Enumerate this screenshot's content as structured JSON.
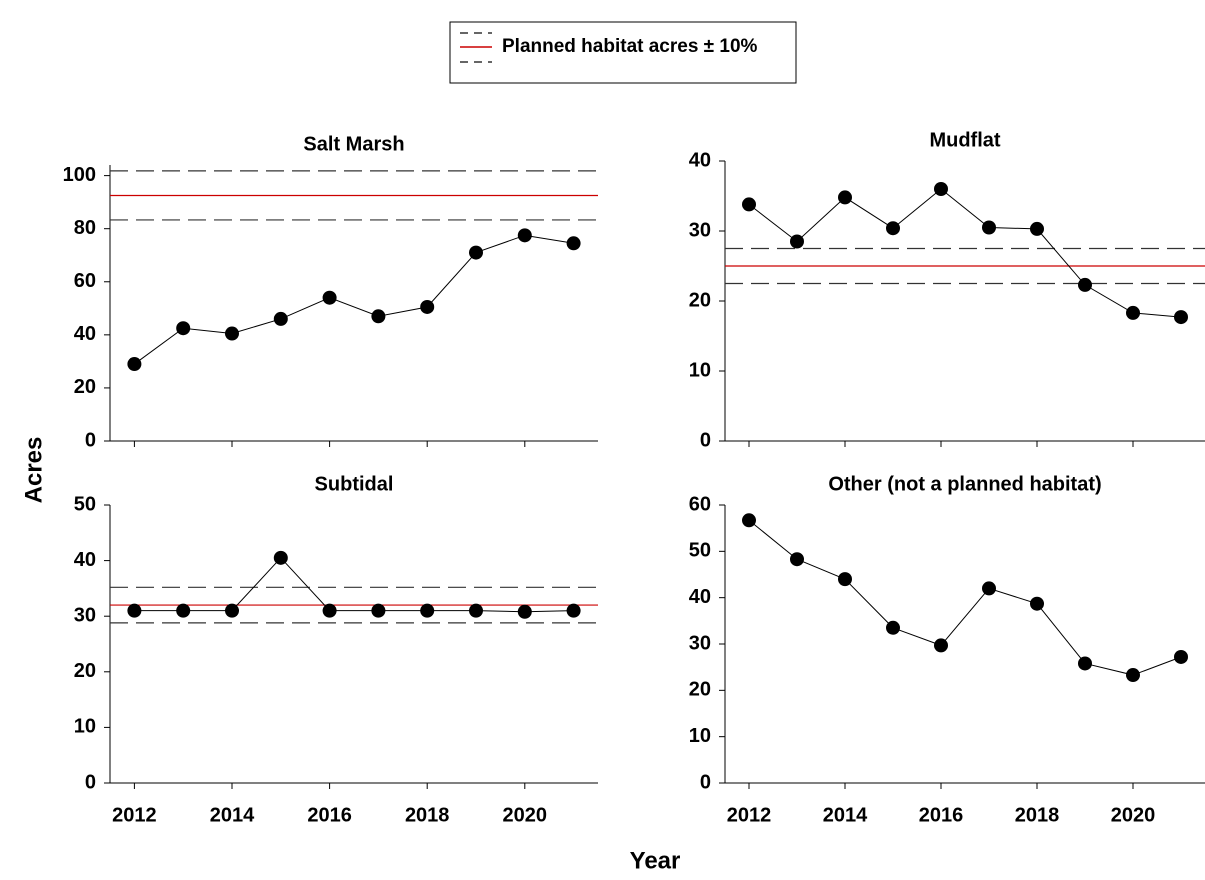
{
  "xlabel": "Year",
  "ylabel": "Acres",
  "legend": {
    "label": "Planned habitat acres ± 10%"
  },
  "chart_data": [
    {
      "type": "line",
      "title": "Salt Marsh",
      "x": [
        2012,
        2013,
        2014,
        2015,
        2016,
        2017,
        2018,
        2019,
        2020,
        2021
      ],
      "values": [
        29,
        42.5,
        40.5,
        46,
        54,
        47,
        50.5,
        71,
        77.5,
        74.5
      ],
      "color": "#000000",
      "xlim": [
        2011.5,
        2021.5
      ],
      "xticks": [
        2012,
        2014,
        2016,
        2018,
        2020
      ],
      "show_xtick_labels": false,
      "ylim": [
        0,
        104
      ],
      "yticks": [
        0,
        20,
        40,
        60,
        80,
        100
      ],
      "reference": {
        "value": 92.5,
        "band": [
          83.3,
          101.8
        ]
      },
      "reference_color": "#cc0000",
      "band_color": "#333333"
    },
    {
      "type": "line",
      "title": "Mudflat",
      "x": [
        2012,
        2013,
        2014,
        2015,
        2016,
        2017,
        2018,
        2019,
        2020,
        2021
      ],
      "values": [
        33.8,
        28.5,
        34.8,
        30.4,
        36,
        30.5,
        30.3,
        22.3,
        18.3,
        17.7
      ],
      "color": "#000000",
      "xlim": [
        2011.5,
        2021.5
      ],
      "xticks": [
        2012,
        2014,
        2016,
        2018,
        2020
      ],
      "show_xtick_labels": false,
      "ylim": [
        0,
        40
      ],
      "yticks": [
        0,
        10,
        20,
        30,
        40
      ],
      "reference": {
        "value": 25,
        "band": [
          22.5,
          27.5
        ]
      },
      "reference_color": "#cc0000",
      "band_color": "#333333"
    },
    {
      "type": "line",
      "title": "Subtidal",
      "x": [
        2012,
        2013,
        2014,
        2015,
        2016,
        2017,
        2018,
        2019,
        2020,
        2021
      ],
      "values": [
        31,
        31,
        31,
        40.5,
        31,
        31,
        31,
        31,
        30.8,
        31
      ],
      "color": "#000000",
      "xlim": [
        2011.5,
        2021.5
      ],
      "xticks": [
        2012,
        2014,
        2016,
        2018,
        2020
      ],
      "show_xtick_labels": true,
      "ylim": [
        0,
        50
      ],
      "yticks": [
        0,
        10,
        20,
        30,
        40,
        50
      ],
      "reference": {
        "value": 32,
        "band": [
          28.8,
          35.2
        ]
      },
      "reference_color": "#cc0000",
      "band_color": "#333333"
    },
    {
      "type": "line",
      "title": "Other (not a planned habitat)",
      "x": [
        2012,
        2013,
        2014,
        2015,
        2016,
        2017,
        2018,
        2019,
        2020,
        2021
      ],
      "values": [
        56.7,
        48.3,
        44,
        33.5,
        29.7,
        42,
        38.7,
        25.8,
        23.3,
        27.2
      ],
      "color": "#000000",
      "xlim": [
        2011.5,
        2021.5
      ],
      "xticks": [
        2012,
        2014,
        2016,
        2018,
        2020
      ],
      "show_xtick_labels": true,
      "ylim": [
        0,
        60
      ],
      "yticks": [
        0,
        10,
        20,
        30,
        40,
        50,
        60
      ]
    }
  ]
}
